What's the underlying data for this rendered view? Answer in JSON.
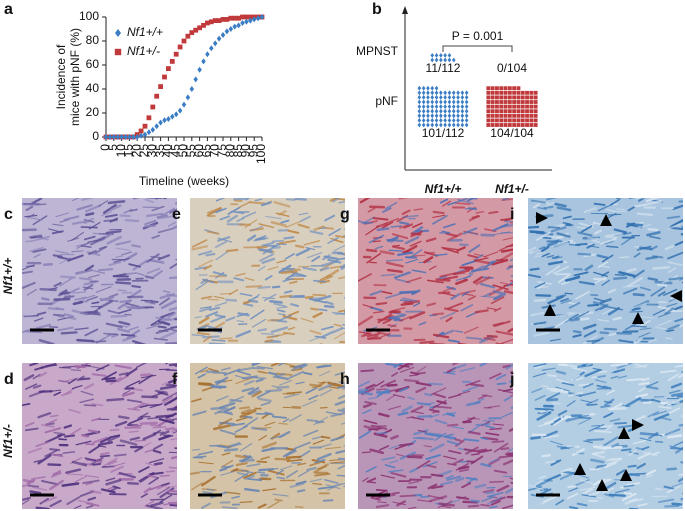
{
  "figure": {
    "panel_labels": [
      "a",
      "b",
      "c",
      "d",
      "e",
      "f",
      "g",
      "h",
      "i",
      "j"
    ],
    "row_labels": [
      "Nf1+/+",
      "Nf1+/-"
    ]
  },
  "chart_data": [
    {
      "type": "scatter",
      "xlabel": "Timeline (weeks)",
      "ylabel": [
        "Incidence of",
        "mice with pNF (%)"
      ],
      "x": [
        0,
        2.5,
        5,
        7.5,
        10,
        12.5,
        15,
        17.5,
        20,
        22.5,
        25,
        27.5,
        30,
        32.5,
        35,
        37.5,
        40,
        42.5,
        45,
        47.5,
        50,
        52.5,
        55,
        57.5,
        60,
        62.5,
        65,
        67.5,
        70,
        72.5,
        75,
        77.5,
        80,
        82.5,
        85,
        87.5,
        90,
        92.5,
        95,
        97.5,
        100
      ],
      "series": [
        {
          "name": "Nf1+/+",
          "color": "#3b7dc4",
          "marker": "diamond",
          "values": [
            0,
            0,
            0,
            0,
            0,
            0,
            0,
            0,
            0,
            1,
            2,
            4,
            6,
            9,
            12,
            14,
            15,
            17,
            19,
            22,
            27,
            33,
            40,
            48,
            56,
            63,
            69,
            74,
            78,
            82,
            85,
            88,
            90,
            92,
            93,
            95,
            96,
            97,
            98,
            99,
            100
          ]
        },
        {
          "name": "Nf1+/-",
          "color": "#c0393b",
          "marker": "square",
          "values": [
            0,
            0,
            0,
            0,
            0,
            0,
            0,
            0,
            2,
            5,
            9,
            16,
            25,
            34,
            42,
            50,
            57,
            63,
            69,
            75,
            80,
            84,
            87,
            89,
            91,
            93,
            95,
            96,
            97,
            97,
            98,
            98,
            99,
            99,
            99,
            100,
            100,
            100,
            100,
            100,
            100
          ]
        }
      ],
      "xlim": [
        0,
        100
      ],
      "xticks": [
        0,
        5,
        10,
        15,
        20,
        25,
        30,
        35,
        40,
        45,
        50,
        55,
        60,
        65,
        70,
        75,
        80,
        85,
        90,
        95,
        100
      ],
      "ylim": [
        0,
        100
      ],
      "yticks": [
        0,
        20,
        40,
        60,
        80,
        100
      ],
      "legend": "top-left"
    },
    {
      "type": "dot",
      "categories": [
        "Nf1+/+",
        "Nf1+/-"
      ],
      "colors": [
        "#3b7dc4",
        "#c0393b"
      ],
      "markers": [
        "diamond",
        "square"
      ],
      "series": [
        {
          "name": "MPNST",
          "values": [
            11,
            0
          ],
          "value_labels": [
            "11/112",
            "0/104"
          ]
        },
        {
          "name": "pNF",
          "values": [
            101,
            104
          ],
          "value_labels": [
            "101/112",
            "104/104"
          ]
        }
      ],
      "annotation": "P = 0.001"
    }
  ]
}
